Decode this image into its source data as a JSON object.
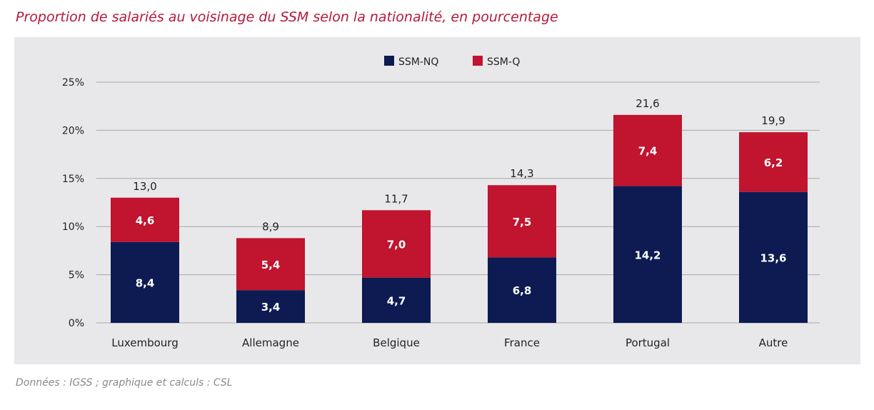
{
  "title": "Proportion de salariés au voisinage du SSM selon la nationalité, en pourcentage",
  "source": "Données : IGSS ; graphique et calculs : CSL",
  "chart_data": {
    "type": "bar",
    "stacked": true,
    "categories": [
      "Luxembourg",
      "Allemagne",
      "Belgique",
      "France",
      "Portugal",
      "Autre"
    ],
    "series": [
      {
        "name": "SSM-NQ",
        "color": "#0d1b52",
        "values": [
          8.4,
          3.4,
          4.7,
          6.8,
          14.2,
          13.6
        ],
        "labels": [
          "8,4",
          "3,4",
          "4,7",
          "6,8",
          "14,2",
          "13,6"
        ]
      },
      {
        "name": "SSM-Q",
        "color": "#c0142f",
        "values": [
          4.6,
          5.4,
          7.0,
          7.5,
          7.4,
          6.2
        ],
        "labels": [
          "4,6",
          "5,4",
          "7,0",
          "7,5",
          "7,4",
          "6,2"
        ]
      }
    ],
    "totals": [
      "13,0",
      "8,9",
      "11,7",
      "14,3",
      "21,6",
      "19,9"
    ],
    "ylim": [
      0,
      25
    ],
    "yticks": [
      "0%",
      "5%",
      "10%",
      "15%",
      "20%",
      "25%"
    ],
    "ytick_values": [
      0,
      5,
      10,
      15,
      20,
      25
    ],
    "grid": true,
    "legend": "top-center"
  }
}
